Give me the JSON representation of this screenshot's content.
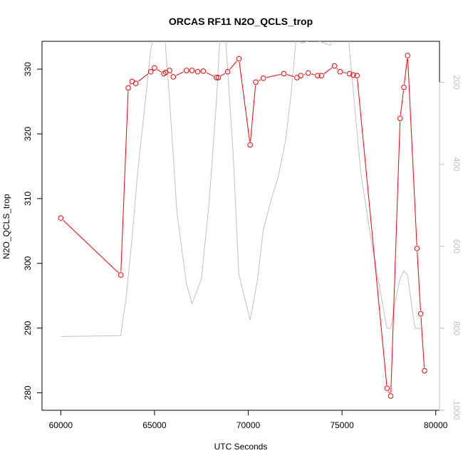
{
  "chart_data": {
    "type": "line",
    "title": "ORCAS RF11 N2O_QCLS_trop",
    "xlabel": "UTC Seconds",
    "ylabel": "N2O_QCLS_trop",
    "xlim": [
      59000,
      80200
    ],
    "ylim": [
      277.3,
      334.3
    ],
    "y2lim": [
      1000,
      100
    ],
    "x_ticks": [
      "60000",
      "65000",
      "70000",
      "75000",
      "80000"
    ],
    "y_ticks": [
      "280",
      "290",
      "300",
      "310",
      "320",
      "330"
    ],
    "y2_ticks": [
      "200",
      "400",
      "600",
      "800",
      "1000"
    ],
    "series": [
      {
        "color": "#ff0000",
        "style": "line+circle",
        "points": [
          [
            60000,
            307.0
          ],
          [
            63200,
            298.2
          ],
          [
            63600,
            327.1
          ],
          [
            63800,
            328.1
          ],
          [
            64000,
            327.8
          ],
          [
            64800,
            329.6
          ],
          [
            65000,
            330.2
          ],
          [
            65500,
            329.3
          ],
          [
            65600,
            329.5
          ],
          [
            65800,
            329.8
          ],
          [
            66000,
            328.8
          ],
          [
            66700,
            329.8
          ],
          [
            67000,
            329.8
          ],
          [
            67300,
            329.6
          ],
          [
            67600,
            329.7
          ],
          [
            68300,
            328.7
          ],
          [
            68400,
            328.7
          ],
          [
            68900,
            329.6
          ],
          [
            69500,
            331.6
          ],
          [
            70100,
            318.3
          ],
          [
            70400,
            328.0
          ],
          [
            70800,
            328.6
          ],
          [
            71900,
            329.3
          ],
          [
            72600,
            328.7
          ],
          [
            72800,
            329.0
          ],
          [
            73200,
            329.4
          ],
          [
            73700,
            329.0
          ],
          [
            73900,
            329.0
          ],
          [
            74600,
            330.5
          ],
          [
            74900,
            329.6
          ],
          [
            75400,
            329.3
          ],
          [
            75600,
            329.1
          ],
          [
            75800,
            329.0
          ],
          [
            77400,
            280.7
          ],
          [
            77600,
            279.5
          ],
          [
            78100,
            322.4
          ],
          [
            78300,
            327.2
          ],
          [
            78500,
            332.1
          ],
          [
            79000,
            302.3
          ],
          [
            79200,
            292.2
          ],
          [
            79400,
            283.4
          ]
        ]
      },
      {
        "color": "#c0c0c0",
        "style": "line",
        "axis": "right",
        "points": [
          [
            60000,
            820
          ],
          [
            63200,
            818
          ],
          [
            63500,
            720
          ],
          [
            63800,
            580
          ],
          [
            64100,
            420
          ],
          [
            64500,
            250
          ],
          [
            64800,
            120
          ],
          [
            65000,
            80
          ],
          [
            65500,
            60
          ],
          [
            65800,
            240
          ],
          [
            66200,
            520
          ],
          [
            66700,
            690
          ],
          [
            67000,
            740
          ],
          [
            67500,
            680
          ],
          [
            67900,
            500
          ],
          [
            68300,
            250
          ],
          [
            68500,
            80
          ],
          [
            68800,
            100
          ],
          [
            69200,
            380
          ],
          [
            69500,
            670
          ],
          [
            70100,
            780
          ],
          [
            70500,
            680
          ],
          [
            70800,
            560
          ],
          [
            71200,
            490
          ],
          [
            71600,
            430
          ],
          [
            72000,
            340
          ],
          [
            72300,
            220
          ],
          [
            72600,
            70
          ],
          [
            72800,
            105
          ],
          [
            73500,
            95
          ],
          [
            74400,
            110
          ],
          [
            74700,
            40
          ],
          [
            74900,
            40
          ],
          [
            75300,
            70
          ],
          [
            75700,
            270
          ],
          [
            76000,
            420
          ],
          [
            76500,
            570
          ],
          [
            77000,
            700
          ],
          [
            77400,
            800
          ],
          [
            77600,
            800
          ],
          [
            77900,
            720
          ],
          [
            78100,
            680
          ],
          [
            78300,
            660
          ],
          [
            78500,
            670
          ],
          [
            78700,
            740
          ],
          [
            78900,
            800
          ],
          [
            79200,
            800
          ]
        ]
      }
    ],
    "markers": "open circles on red series",
    "right_axis": "gray, inverted (pressure-like), no label",
    "grid": false,
    "legend": "none"
  }
}
